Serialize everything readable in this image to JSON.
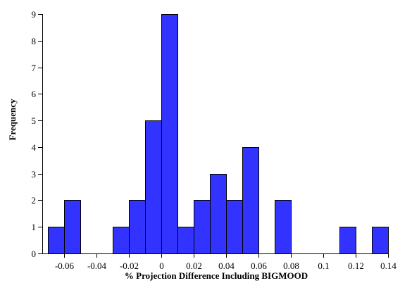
{
  "colors": {
    "bar_fill": "#3333ff",
    "bar_stroke": "#000000"
  },
  "chart_data": {
    "type": "bar",
    "subtype": "histogram",
    "title": "",
    "xlabel": "% Projection Difference Including BIGMOOD",
    "ylabel": "Frequency",
    "bin_width": 0.01,
    "bins": [
      {
        "start": -0.07,
        "end": -0.06,
        "count": 1
      },
      {
        "start": -0.06,
        "end": -0.05,
        "count": 2
      },
      {
        "start": -0.05,
        "end": -0.04,
        "count": 0
      },
      {
        "start": -0.04,
        "end": -0.03,
        "count": 0
      },
      {
        "start": -0.03,
        "end": -0.02,
        "count": 1
      },
      {
        "start": -0.02,
        "end": -0.01,
        "count": 2
      },
      {
        "start": -0.01,
        "end": 0.0,
        "count": 5
      },
      {
        "start": 0.0,
        "end": 0.01,
        "count": 9
      },
      {
        "start": 0.01,
        "end": 0.02,
        "count": 1
      },
      {
        "start": 0.02,
        "end": 0.03,
        "count": 2
      },
      {
        "start": 0.03,
        "end": 0.04,
        "count": 3
      },
      {
        "start": 0.04,
        "end": 0.05,
        "count": 2
      },
      {
        "start": 0.05,
        "end": 0.06,
        "count": 4
      },
      {
        "start": 0.06,
        "end": 0.07,
        "count": 0
      },
      {
        "start": 0.07,
        "end": 0.08,
        "count": 2
      },
      {
        "start": 0.08,
        "end": 0.09,
        "count": 0
      },
      {
        "start": 0.09,
        "end": 0.1,
        "count": 0
      },
      {
        "start": 0.1,
        "end": 0.11,
        "count": 0
      },
      {
        "start": 0.11,
        "end": 0.12,
        "count": 1
      },
      {
        "start": 0.12,
        "end": 0.13,
        "count": 0
      },
      {
        "start": 0.13,
        "end": 0.14,
        "count": 1
      }
    ],
    "xlim": [
      -0.0735,
      0.1405
    ],
    "ylim": [
      0,
      9
    ],
    "x_ticks": [
      -0.06,
      -0.04,
      -0.02,
      0,
      0.02,
      0.04,
      0.06,
      0.08,
      0.1,
      0.12,
      0.14
    ],
    "x_tick_labels": [
      "-0.06",
      "-0.04",
      "-0.02",
      "0",
      "0.02",
      "0.04",
      "0.06",
      "0.08",
      "0.1",
      "0.12",
      "0.14"
    ],
    "y_ticks": [
      0,
      1,
      2,
      3,
      4,
      5,
      6,
      7,
      8,
      9
    ],
    "y_tick_labels": [
      "0",
      "1",
      "2",
      "3",
      "4",
      "5",
      "6",
      "7",
      "8",
      "9"
    ],
    "grid": false,
    "legend": "none"
  }
}
